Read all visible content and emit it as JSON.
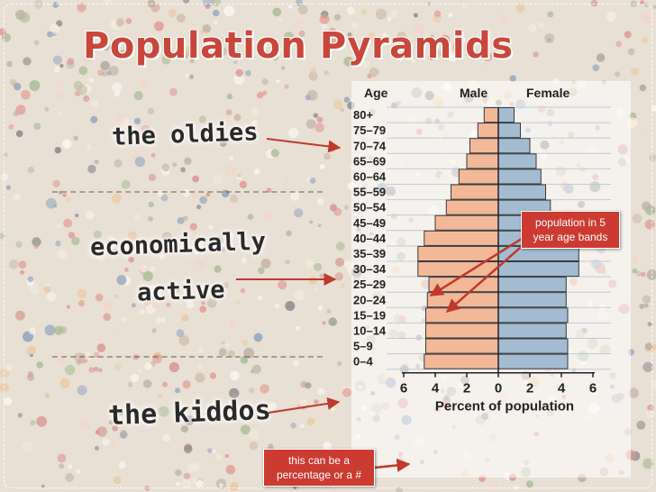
{
  "slide": {
    "title": "Population Pyramids",
    "labels": {
      "oldies": "the oldies",
      "econ_line1": "economically",
      "econ_line2": "active",
      "kiddos": "the kiddos"
    },
    "note_bands": "population in 5 year age bands",
    "note_percent": "this can be a percentage or a #",
    "colors": {
      "title": "#c9473a",
      "male": "#f3b898",
      "female": "#a3bcd1",
      "note_bg": "#cc3b32",
      "arrow": "#c0392b"
    }
  },
  "chart_data": {
    "type": "bar",
    "orientation": "horizontal-pyramid",
    "header": {
      "age": "Age",
      "male": "Male",
      "female": "Female"
    },
    "categories": [
      "80+",
      "75–79",
      "70–74",
      "65–69",
      "60–64",
      "55–59",
      "50–54",
      "45–49",
      "40–44",
      "35–39",
      "30–34",
      "25–29",
      "20–24",
      "15–19",
      "10–14",
      "5–9",
      "0–4"
    ],
    "series": [
      {
        "name": "Male",
        "color": "#f3b898",
        "values": [
          0.9,
          1.3,
          1.8,
          2.0,
          2.5,
          3.0,
          3.3,
          4.0,
          4.7,
          5.1,
          5.1,
          4.4,
          4.5,
          4.6,
          4.6,
          4.6,
          4.7
        ]
      },
      {
        "name": "Female",
        "color": "#a3bcd1",
        "values": [
          1.0,
          1.4,
          2.0,
          2.4,
          2.7,
          3.0,
          3.3,
          3.8,
          4.5,
          5.1,
          5.1,
          4.3,
          4.3,
          4.4,
          4.3,
          4.4,
          4.4
        ]
      }
    ],
    "x_ticks": [
      "6",
      "4",
      "2",
      "0",
      "2",
      "4",
      "6"
    ],
    "xlabel": "Percent of population",
    "xlim": [
      -6,
      6
    ]
  }
}
